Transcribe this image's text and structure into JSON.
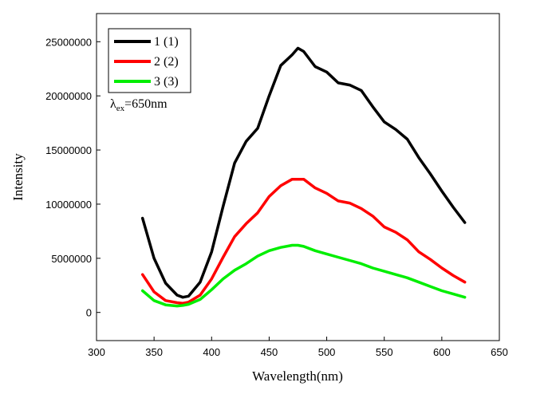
{
  "chart_data": {
    "type": "line",
    "xlabel": "Wavelength(nm)",
    "ylabel": "Intensity",
    "xlim": [
      300,
      650
    ],
    "ylim": [
      -2600000,
      27600000
    ],
    "x_ticks": [
      300,
      350,
      400,
      450,
      500,
      550,
      600,
      650
    ],
    "y_ticks": [
      0,
      5000000,
      10000000,
      15000000,
      20000000,
      25000000
    ],
    "grid": false,
    "legend_position": "top-left",
    "annotation": {
      "base": "λ",
      "sub": "ex",
      "rest": "=650nm"
    },
    "x": [
      340,
      350,
      360,
      370,
      375,
      380,
      390,
      400,
      410,
      420,
      430,
      440,
      450,
      460,
      470,
      475,
      480,
      490,
      500,
      510,
      520,
      530,
      540,
      550,
      560,
      570,
      580,
      590,
      600,
      610,
      620
    ],
    "series": [
      {
        "name": "1 (1)",
        "color": "#000000",
        "values": [
          8700000,
          5000000,
          2700000,
          1600000,
          1400000,
          1500000,
          2800000,
          5600000,
          9800000,
          13800000,
          15800000,
          17000000,
          20000000,
          22800000,
          23800000,
          24400000,
          24100000,
          22700000,
          22200000,
          21200000,
          21000000,
          20500000,
          19000000,
          17600000,
          16900000,
          16000000,
          14300000,
          12800000,
          11200000,
          9700000,
          8300000
        ]
      },
      {
        "name": "2 (2)",
        "color": "#ff0000",
        "values": [
          3500000,
          1900000,
          1100000,
          900000,
          850000,
          950000,
          1600000,
          3100000,
          5100000,
          7000000,
          8200000,
          9200000,
          10700000,
          11700000,
          12300000,
          12300000,
          12300000,
          11500000,
          11000000,
          10300000,
          10100000,
          9600000,
          8900000,
          7900000,
          7400000,
          6700000,
          5600000,
          4900000,
          4100000,
          3400000,
          2800000
        ]
      },
      {
        "name": "3 (3)",
        "color": "#00ee00",
        "values": [
          2000000,
          1100000,
          700000,
          600000,
          650000,
          750000,
          1200000,
          2100000,
          3100000,
          3900000,
          4500000,
          5200000,
          5700000,
          6000000,
          6200000,
          6200000,
          6100000,
          5700000,
          5400000,
          5100000,
          4800000,
          4500000,
          4100000,
          3800000,
          3500000,
          3200000,
          2800000,
          2400000,
          2000000,
          1700000,
          1400000
        ]
      }
    ]
  }
}
